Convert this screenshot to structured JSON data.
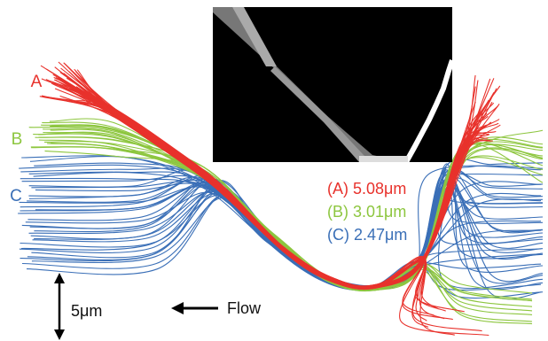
{
  "labels": {
    "a": "A",
    "b": "B",
    "c": "C"
  },
  "legend": [
    "(A) 5.08μm",
    "(B) 3.01μm",
    "(C) 2.47μm"
  ],
  "scale_bar": "5μm",
  "flow": "Flow"
}
